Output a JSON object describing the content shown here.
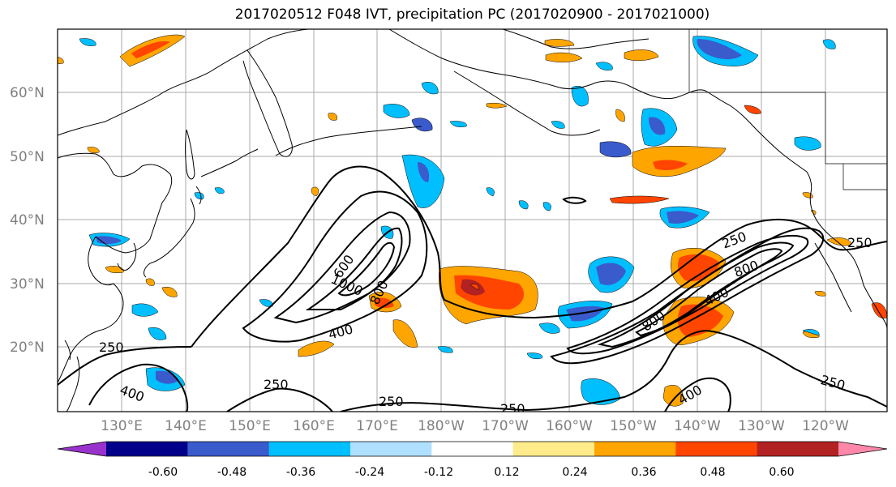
{
  "title": "2017020512 F048 IVT, precipitation PC (2017020900 - 2017021000)",
  "lat_labels": [
    "60°N",
    "50°N",
    "40°N",
    "30°N",
    "20°N"
  ],
  "lon_labels": [
    "130°E",
    "140°E",
    "150°E",
    "160°E",
    "170°E",
    "180°W",
    "170°W",
    "160°W",
    "150°W",
    "140°W",
    "130°W",
    "120°W"
  ],
  "colorbar": {
    "colors": [
      "#9932cc",
      "#00008b",
      "#3a5bcc",
      "#00bfff",
      "#b0e0ff",
      "#ffffff",
      "#ffeb8a",
      "#ffa500",
      "#ff4500",
      "#b22222",
      "#ff88aa"
    ],
    "tick_labels": [
      "-0.60",
      "-0.48",
      "-0.36",
      "-0.24",
      "-0.12",
      "0.12",
      "0.24",
      "0.36",
      "0.48",
      "0.60"
    ]
  },
  "ivt_contour_labels": [
    "250",
    "400",
    "600",
    "800",
    "1000",
    "800",
    "400",
    "250",
    "250",
    "250",
    "400",
    "250",
    "800",
    "400",
    "250",
    "250",
    "400",
    "250"
  ],
  "colors": {
    "ocean": "#ffffff",
    "grid": "#aaaaaa",
    "coast": "#000000"
  }
}
